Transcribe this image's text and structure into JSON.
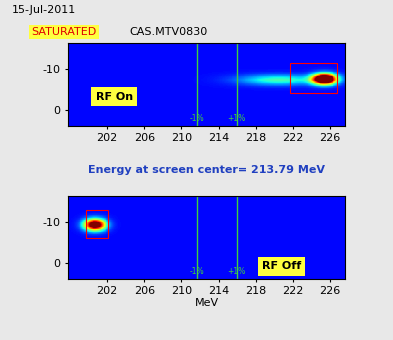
{
  "header": {
    "date": "15-Jul-2011",
    "status": "SATURATED",
    "device": "CAS.MTV0830"
  },
  "caption": "Energy at screen center= 213.79 MeV",
  "chart_data": [
    {
      "type": "heatmap",
      "label": "RF On",
      "xlim": [
        197.8,
        227.6
      ],
      "xticks": [
        202,
        206,
        210,
        214,
        218,
        222,
        226
      ],
      "ylim": [
        4,
        -16.5
      ],
      "yticks": [
        -10,
        0
      ],
      "markers": [
        {
          "value": 211.65,
          "label": "-1%"
        },
        {
          "value": 215.93,
          "label": "+1%"
        }
      ],
      "beam": [
        {
          "center": [
            225.4,
            -7.5
          ],
          "sigma": [
            0.9,
            0.9
          ],
          "intensity": 1.6
        },
        {
          "center": [
            220.5,
            -7.3
          ],
          "sigma": [
            3.0,
            0.9
          ],
          "intensity": 0.35
        }
      ],
      "roi": {
        "x": [
          221.7,
          226.7
        ],
        "y": [
          -11.5,
          -4
        ]
      }
    },
    {
      "type": "heatmap",
      "label": "RF Off",
      "xlabel": "MeV",
      "xlim": [
        197.8,
        227.6
      ],
      "xticks": [
        202,
        206,
        210,
        214,
        218,
        222,
        226
      ],
      "ylim": [
        4,
        -16.5
      ],
      "yticks": [
        -10,
        0
      ],
      "markers": [
        {
          "value": 211.65,
          "label": "-1%"
        },
        {
          "value": 215.93,
          "label": "+1%"
        }
      ],
      "beam": [
        {
          "center": [
            200.7,
            -9.3
          ],
          "sigma": [
            0.8,
            1.0
          ],
          "intensity": 1.3
        }
      ],
      "roi": {
        "x": [
          199.7,
          202.1
        ],
        "y": [
          -13,
          -6
        ]
      }
    }
  ]
}
